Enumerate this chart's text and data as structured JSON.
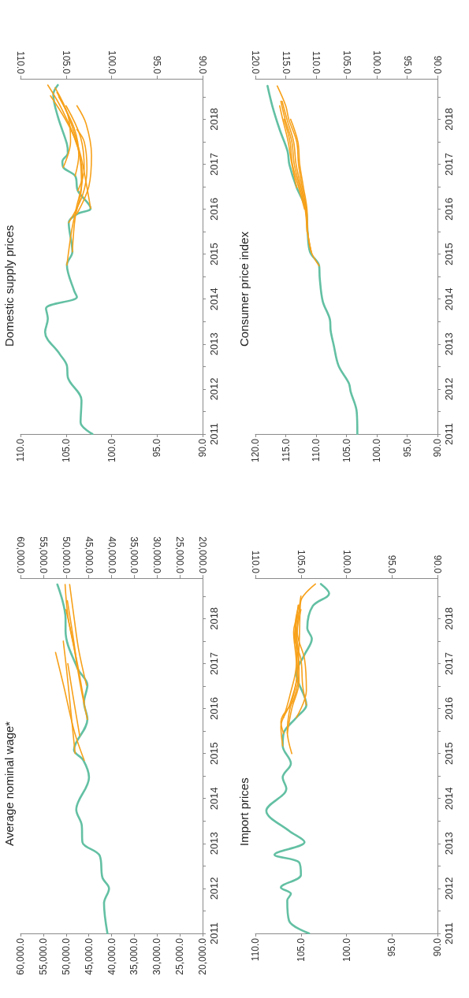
{
  "chart_data": [
    {
      "type": "line",
      "title": "Average nominal wage*",
      "marker": "none",
      "line_style": "solid",
      "ylim": [
        2011,
        2018.9
      ],
      "yticks": [
        2011,
        {
          "value": 2011.5,
          "label": null
        },
        2012,
        {
          "value": 2012.5,
          "label": null
        },
        2013,
        {
          "value": 2013.5,
          "label": null
        },
        2014,
        {
          "value": 2014.5,
          "label": null
        },
        2015,
        {
          "value": 2015.5,
          "label": null
        },
        2016,
        {
          "value": 2016.5,
          "label": null
        },
        2017,
        {
          "value": 2017.5,
          "label": null
        },
        2018,
        {
          "value": 2018.5,
          "label": null
        }
      ],
      "xlim": [
        60000,
        20000
      ],
      "xticks": [
        {
          "value": 20000,
          "label": "20,000.0"
        },
        {
          "value": 25000,
          "label": "25,000.0"
        },
        {
          "value": 30000,
          "label": "30,000.0"
        },
        {
          "value": 35000,
          "label": "35,000.0"
        },
        {
          "value": 40000,
          "label": "40,000.0"
        },
        {
          "value": 45000,
          "label": "45,000.0"
        },
        {
          "value": 50000,
          "label": "50,000.0"
        },
        {
          "value": 55000,
          "label": "55,000.0"
        },
        {
          "value": 60000,
          "label": "60,000.0"
        }
      ],
      "x2lim": [
        60000,
        20000
      ],
      "x2ticks": [
        {
          "value": 20000,
          "label": "20,000.0"
        },
        {
          "value": 25000,
          "label": "25,000.0"
        },
        {
          "value": 30000,
          "label": "30,000.0"
        },
        {
          "value": 35000,
          "label": "35,000.0"
        },
        {
          "value": 40000,
          "label": "40,000.0"
        },
        {
          "value": 45000,
          "label": "45,000.0"
        },
        {
          "value": 50000,
          "label": "50,000.0"
        },
        {
          "value": 55000,
          "label": "55,000.0"
        },
        {
          "value": 60000,
          "label": "60,000.0"
        }
      ],
      "series": [
        {
          "color": "#63c0a3",
          "values": [
            2011,
            2011.67,
            2012,
            2012.24,
            2012.73,
            2013.03,
            2013.41,
            2013.75,
            2014.47,
            2014.85,
            2015.08,
            2015.76,
            2016.14,
            2016.52,
            2016.9,
            2017.73,
            2018,
            2018.76
          ],
          "x": [
            40900,
            41650,
            40550,
            42000,
            42600,
            46400,
            46550,
            47750,
            44950,
            46200,
            48250,
            45300,
            46050,
            45300,
            47500,
            50100,
            50100,
            51900
          ]
        },
        {
          "color": "#f7a11a",
          "values": [
            2014.85,
            2015.5,
            2016.5,
            2017.25
          ],
          "x": [
            46000,
            48200,
            50500,
            52300
          ]
        },
        {
          "color": "#f7a11a",
          "values": [
            2015,
            2016,
            2016.8,
            2017.5
          ],
          "x": [
            48000,
            49000,
            49800,
            50600
          ]
        },
        {
          "color": "#f7a11a",
          "values": [
            2015.4,
            2016.3,
            2017
          ],
          "x": [
            47000,
            48500,
            49600
          ]
        },
        {
          "color": "#f7a11a",
          "values": [
            2015.76,
            2016.5,
            2017.5,
            2018.2
          ],
          "x": [
            45300,
            46800,
            48500,
            50000
          ]
        },
        {
          "color": "#f7a11a",
          "values": [
            2016.14,
            2017,
            2018,
            2018.76
          ],
          "x": [
            46000,
            47500,
            49500,
            50200
          ]
        },
        {
          "color": "#f7a11a",
          "values": [
            2016.52,
            2017.3,
            2018,
            2018.76
          ],
          "x": [
            45500,
            47200,
            48200,
            49200
          ]
        },
        {
          "color": "#f7a11a",
          "values": [
            2016.9,
            2017.5,
            2018.4
          ],
          "x": [
            47500,
            48300,
            49700
          ]
        }
      ]
    },
    {
      "type": "line",
      "title": "Domestic supply prices",
      "marker": "none",
      "line_style": "solid",
      "ylim": [
        2011,
        2018.9
      ],
      "yticks": [
        2011,
        {
          "value": 2011.5,
          "label": null
        },
        2012,
        {
          "value": 2012.5,
          "label": null
        },
        2013,
        {
          "value": 2013.5,
          "label": null
        },
        2014,
        {
          "value": 2014.5,
          "label": null
        },
        2015,
        {
          "value": 2015.5,
          "label": null
        },
        2016,
        {
          "value": 2016.5,
          "label": null
        },
        2017,
        {
          "value": 2017.5,
          "label": null
        },
        2018,
        {
          "value": 2018.5,
          "label": null
        }
      ],
      "xlim": [
        110,
        90
      ],
      "xticks": [
        {
          "value": 90,
          "label": "90.0"
        },
        {
          "value": 95,
          "label": "95.0"
        },
        {
          "value": 100,
          "label": "100.0"
        },
        {
          "value": 105,
          "label": "105.0"
        },
        {
          "value": 110,
          "label": "110.0"
        }
      ],
      "x2lim": [
        110,
        90
      ],
      "x2ticks": [
        {
          "value": 90,
          "label": "90.0"
        },
        {
          "value": 95,
          "label": "95.0"
        },
        {
          "value": 100,
          "label": "100.0"
        },
        {
          "value": 105,
          "label": "105.0"
        },
        {
          "value": 110,
          "label": "110.0"
        }
      ],
      "series": [
        {
          "color": "#63c0a3",
          "values": [
            2011,
            2011.26,
            2011.75,
            2012.26,
            2012.52,
            2012.78,
            2013.27,
            2013.56,
            2013.79,
            2014.05,
            2014.18,
            2014.76,
            2015.05,
            2015.7,
            2015.89,
            2016.02,
            2016.41,
            2016.74,
            2016.93,
            2017.06,
            2017.25,
            2017.45,
            2018.06,
            2018.55,
            2018.76
          ],
          "x": [
            102.1,
            103.4,
            103.3,
            104.8,
            104.9,
            105.7,
            107.3,
            107,
            107.2,
            103.8,
            104.1,
            104.9,
            104.3,
            104.7,
            103.8,
            102.3,
            103.7,
            104,
            105.3,
            105.4,
            104.8,
            104.9,
            105.9,
            106.4,
            105.9
          ]
        },
        {
          "color": "#f7a11a",
          "values": [
            2014.76,
            2015.5,
            2016,
            2016.7,
            2017.6,
            2018.52
          ],
          "x": [
            104.9,
            104.4,
            103.9,
            103.2,
            104.1,
            106.7
          ]
        },
        {
          "color": "#f7a11a",
          "values": [
            2015.05,
            2015.8,
            2016.5,
            2017.3,
            2018.2,
            2018.76
          ],
          "x": [
            104.3,
            104,
            103.3,
            103.6,
            105.4,
            107
          ]
        },
        {
          "color": "#f7a11a",
          "values": [
            2015.7,
            2016.3,
            2016.9,
            2017.5,
            2017.77
          ],
          "x": [
            104.7,
            103.2,
            102.7,
            103,
            103.8
          ]
        },
        {
          "color": "#f7a11a",
          "values": [
            2016.02,
            2016.6,
            2017.2,
            2018,
            2018.6
          ],
          "x": [
            102.3,
            102.8,
            103.4,
            104.6,
            106
          ]
        },
        {
          "color": "#f7a11a",
          "values": [
            2016.41,
            2016.9,
            2017.6,
            2018.3
          ],
          "x": [
            103.7,
            103,
            103.4,
            105
          ]
        },
        {
          "color": "#f7a11a",
          "values": [
            2016.74,
            2017.2,
            2017.8,
            2018.5
          ],
          "x": [
            104,
            103.6,
            104.1,
            105.8
          ]
        },
        {
          "color": "#f7a11a",
          "values": [
            2016.93,
            2017.5,
            2018.1,
            2018.7
          ],
          "x": [
            105.3,
            104.5,
            104.8,
            106.2
          ]
        },
        {
          "color": "#f7a11a",
          "values": [
            2015.9,
            2016.5,
            2017.2,
            2017.9,
            2018.3
          ],
          "x": [
            103.8,
            102.5,
            102.2,
            102.8,
            103.8
          ]
        }
      ]
    },
    {
      "type": "line",
      "title": "Import prices",
      "marker": "none",
      "line_style": "solid",
      "ylim": [
        2011,
        2018.9
      ],
      "yticks": [
        2011,
        {
          "value": 2011.5,
          "label": null
        },
        2012,
        {
          "value": 2012.5,
          "label": null
        },
        2013,
        {
          "value": 2013.5,
          "label": null
        },
        2014,
        {
          "value": 2014.5,
          "label": null
        },
        2015,
        {
          "value": 2015.5,
          "label": null
        },
        2016,
        {
          "value": 2016.5,
          "label": null
        },
        2017,
        {
          "value": 2017.5,
          "label": null
        },
        2018,
        {
          "value": 2018.5,
          "label": null
        }
      ],
      "xlim": [
        110,
        90
      ],
      "xticks": [
        {
          "value": 90,
          "label": "90.0"
        },
        {
          "value": 95,
          "label": "95.0"
        },
        {
          "value": 100,
          "label": "100.0"
        },
        {
          "value": 105,
          "label": "105.0"
        },
        {
          "value": 110,
          "label": "110.0"
        }
      ],
      "x2lim": [
        110,
        90
      ],
      "x2ticks": [
        {
          "value": 90,
          "label": "90.0"
        },
        {
          "value": 95,
          "label": "95.0"
        },
        {
          "value": 100,
          "label": "100.0"
        },
        {
          "value": 105,
          "label": "105.0"
        },
        {
          "value": 110,
          "label": "110.0"
        }
      ],
      "series": [
        {
          "color": "#63c0a3",
          "values": [
            2011,
            2011.28,
            2011.73,
            2011.88,
            2012.02,
            2012.3,
            2012.58,
            2012.75,
            2013.03,
            2013.28,
            2013.73,
            2014.22,
            2014.47,
            2014.78,
            2015.17,
            2015.45,
            2015.8,
            2016.08,
            2016.78,
            2017.2,
            2017.55,
            2017.79,
            2018.28,
            2018.56,
            2018.77
          ],
          "x": [
            104.1,
            106.3,
            106.5,
            106.1,
            107.2,
            105,
            105.2,
            107.9,
            104.6,
            106.3,
            108.8,
            106.6,
            107,
            106.1,
            107,
            106.9,
            105.5,
            104.4,
            105.5,
            104.6,
            103.8,
            104.3,
            103.7,
            101.9,
            102.8
          ]
        },
        {
          "color": "#f7a11a",
          "values": [
            2015,
            2015.5,
            2015.9,
            2016.6,
            2017.4,
            2018.1,
            2018.4,
            2018.77
          ],
          "x": [
            106,
            106.5,
            106.3,
            105.5,
            105.2,
            105.1,
            105,
            103.4
          ]
        },
        {
          "color": "#f7a11a",
          "values": [
            2015.17,
            2015.6,
            2016.1,
            2016.8,
            2017.5,
            2018.2,
            2018.5
          ],
          "x": [
            107,
            107.2,
            106.2,
            105.4,
            105.5,
            105.2,
            105
          ]
        },
        {
          "color": "#f7a11a",
          "values": [
            2015.45,
            2015.7,
            2016.2,
            2016.9,
            2017.6,
            2018.3
          ],
          "x": [
            106.9,
            107.2,
            105.8,
            105.2,
            105.6,
            105.3
          ]
        },
        {
          "color": "#f7a11a",
          "values": [
            2015.8,
            2016.4,
            2017.1,
            2017.7,
            2018.2
          ],
          "x": [
            105.5,
            104.4,
            104.6,
            105.4,
            105
          ]
        },
        {
          "color": "#f7a11a",
          "values": [
            2016.08,
            2016.5,
            2017.1,
            2017.6,
            2018.1
          ],
          "x": [
            104.4,
            104.8,
            105,
            105.7,
            105.3
          ]
        },
        {
          "color": "#f7a11a",
          "values": [
            2015.45,
            2016,
            2016.6,
            2017.3,
            2017.9,
            2018.3
          ],
          "x": [
            106.5,
            106,
            105.2,
            105.3,
            105.6,
            105.2
          ]
        },
        {
          "color": "#f7a11a",
          "values": [
            2015.8,
            2016.3,
            2017,
            2017.7,
            2018.2
          ],
          "x": [
            106.9,
            106.2,
            105.5,
            105.8,
            105.1
          ]
        }
      ]
    },
    {
      "type": "line",
      "title": "Consumer price index",
      "marker": "none",
      "line_style": "solid",
      "ylim": [
        2011,
        2018.9
      ],
      "yticks": [
        2011,
        {
          "value": 2011.5,
          "label": null
        },
        2012,
        {
          "value": 2012.5,
          "label": null
        },
        2013,
        {
          "value": 2013.5,
          "label": null
        },
        2014,
        {
          "value": 2014.5,
          "label": null
        },
        2015,
        {
          "value": 2015.5,
          "label": null
        },
        2016,
        {
          "value": 2016.5,
          "label": null
        },
        2017,
        {
          "value": 2017.5,
          "label": null
        },
        2018,
        {
          "value": 2018.5,
          "label": null
        }
      ],
      "xlim": [
        120,
        90
      ],
      "xticks": [
        {
          "value": 90,
          "label": "90.0"
        },
        {
          "value": 95,
          "label": "95.0"
        },
        {
          "value": 100,
          "label": "100.0"
        },
        {
          "value": 105,
          "label": "105.0"
        },
        {
          "value": 110,
          "label": "110.0"
        },
        {
          "value": 115,
          "label": "115.0"
        },
        {
          "value": 120,
          "label": "120.0"
        }
      ],
      "x2lim": [
        120,
        90
      ],
      "x2ticks": [
        {
          "value": 90,
          "label": "90.0"
        },
        {
          "value": 95,
          "label": "95.0"
        },
        {
          "value": 100,
          "label": "100.0"
        },
        {
          "value": 105,
          "label": "105.0"
        },
        {
          "value": 110,
          "label": "110.0"
        },
        {
          "value": 115,
          "label": "115.0"
        },
        {
          "value": 120,
          "label": "120.0"
        }
      ],
      "series": [
        {
          "color": "#63c0a3",
          "values": [
            2011,
            2011.49,
            2011.94,
            2012.13,
            2012.52,
            2012.98,
            2013.3,
            2013.53,
            2013.95,
            2014.47,
            2014.74,
            2015.05,
            2015.5,
            2016.02,
            2016.48,
            2016.99,
            2017.29,
            2017.77,
            2018.29,
            2018.74
          ],
          "x": [
            103.2,
            103.3,
            104.3,
            104.6,
            106.3,
            107.1,
            107.6,
            107.7,
            108.9,
            109.4,
            109.5,
            111,
            111.4,
            111.7,
            113.2,
            114.4,
            114.7,
            116,
            117.2,
            118
          ]
        },
        {
          "color": "#f7a11a",
          "values": [
            2014.74,
            2015.05,
            2015.5,
            2016,
            2016.5,
            2017,
            2017.5,
            2018,
            2018.3,
            2018.74
          ],
          "x": [
            109.5,
            110.8,
            111.4,
            111.6,
            112.3,
            112.9,
            113.2,
            114.5,
            115,
            116.4
          ]
        },
        {
          "color": "#f7a11a",
          "values": [
            2015.05,
            2015.5,
            2016,
            2016.5,
            2017,
            2017.5,
            2018,
            2018.4
          ],
          "x": [
            110.8,
            111.4,
            111.7,
            112.5,
            113.3,
            113.7,
            114.8,
            115.6
          ]
        },
        {
          "color": "#f7a11a",
          "values": [
            2015.5,
            2016,
            2016.5,
            2017,
            2017.5,
            2018,
            2018.4
          ],
          "x": [
            111.5,
            111.8,
            112.7,
            113.6,
            114,
            115.1,
            115.8
          ]
        },
        {
          "color": "#f7a11a",
          "values": [
            2016,
            2016.5,
            2017,
            2017.5,
            2018
          ],
          "x": [
            111.9,
            112.9,
            113.9,
            114.3,
            115.3
          ]
        },
        {
          "color": "#f7a11a",
          "values": [
            2016.48,
            2017,
            2017.5,
            2018,
            2018.3
          ],
          "x": [
            113.2,
            114,
            114.6,
            115.5,
            116
          ]
        },
        {
          "color": "#f7a11a",
          "values": [
            2015.05,
            2015.5,
            2016,
            2016.5,
            2017,
            2017.5,
            2018
          ],
          "x": [
            110.8,
            111.4,
            111.5,
            112.1,
            112.7,
            113,
            114.2
          ]
        }
      ]
    }
  ]
}
